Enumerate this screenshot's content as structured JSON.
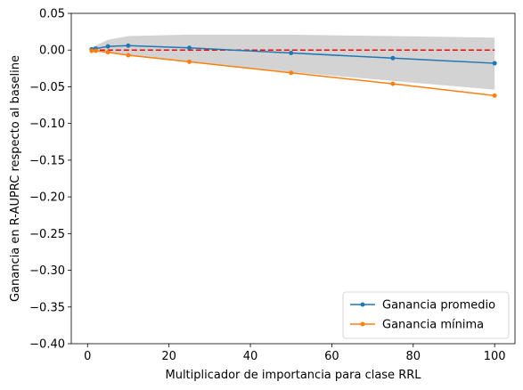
{
  "chart_data": {
    "type": "line",
    "title": "",
    "xlabel": "Multiplicador de importancia para clase RRL",
    "ylabel": "Ganancia en R-AUPRC respecto al baseline",
    "xlim": [
      -4,
      105
    ],
    "ylim": [
      -0.4,
      0.05
    ],
    "xticks": [
      0,
      20,
      40,
      60,
      80,
      100
    ],
    "yticks": [
      0.05,
      0.0,
      -0.05,
      -0.1,
      -0.15,
      -0.2,
      -0.25,
      -0.3,
      -0.35,
      -0.4
    ],
    "xtick_labels": [
      "0",
      "20",
      "40",
      "60",
      "80",
      "100"
    ],
    "ytick_labels": [
      "0.05",
      "0.00",
      "−0.05",
      "−0.10",
      "−0.15",
      "−0.20",
      "−0.25",
      "−0.30",
      "−0.35",
      "−0.40"
    ],
    "grid": false,
    "legend_position": "lower-right",
    "x": [
      1,
      2,
      5,
      10,
      25,
      50,
      75,
      100
    ],
    "series": [
      {
        "name": "Ganancia promedio",
        "color": "#1f77b4",
        "marker": "circle",
        "values": [
          0.001,
          0.002,
          0.005,
          0.006,
          0.003,
          -0.004,
          -0.011,
          -0.018
        ]
      },
      {
        "name": "Ganancia mínima",
        "color": "#ff7f0e",
        "marker": "circle",
        "values": [
          -0.001,
          -0.001,
          -0.003,
          -0.007,
          -0.016,
          -0.031,
          -0.046,
          -0.062
        ]
      }
    ],
    "band": {
      "color": "#d3d3d3",
      "lower": [
        -0.001,
        -0.002,
        -0.004,
        -0.008,
        -0.016,
        -0.03,
        -0.042,
        -0.054
      ],
      "upper": [
        0.003,
        0.006,
        0.014,
        0.019,
        0.021,
        0.021,
        0.019,
        0.017
      ]
    },
    "baseline": {
      "y": 0.0,
      "color": "#ff0000",
      "style": "dashed",
      "x_range": [
        1,
        100
      ]
    }
  }
}
